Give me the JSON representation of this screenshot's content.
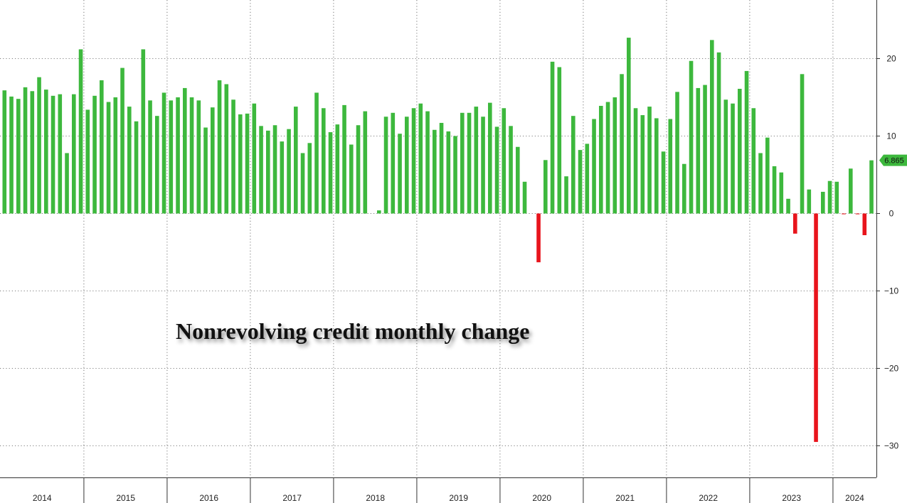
{
  "chart_data": {
    "type": "bar",
    "title": "Nonrevolving credit monthly change",
    "xlabel": "",
    "ylabel": "",
    "ylim": [
      -34,
      27.5
    ],
    "yticks": [
      20,
      10,
      0,
      -10,
      -20,
      -30
    ],
    "grid": true,
    "x_start": "2014-01",
    "year_labels": [
      "2014",
      "2015",
      "2016",
      "2017",
      "2018",
      "2019",
      "2020",
      "2021",
      "2022",
      "2023",
      "2024"
    ],
    "last_value_label": "6.865",
    "positive_color": "#3db83d",
    "negative_color": "#e8141c",
    "label_color": "#3db83d",
    "values": [
      15.9,
      15.1,
      14.8,
      16.3,
      15.8,
      17.6,
      16.0,
      15.2,
      15.4,
      7.8,
      15.4,
      21.2,
      13.4,
      15.2,
      17.2,
      14.4,
      15.0,
      18.8,
      13.8,
      11.9,
      21.2,
      14.6,
      12.6,
      15.6,
      14.6,
      15.0,
      16.2,
      15.0,
      14.6,
      11.1,
      13.7,
      17.2,
      16.7,
      14.7,
      12.8,
      12.9,
      14.2,
      11.3,
      10.7,
      11.4,
      9.3,
      10.9,
      13.8,
      7.8,
      9.1,
      15.6,
      13.6,
      10.5,
      11.5,
      14.0,
      8.9,
      11.4,
      13.2,
      0.0,
      0.4,
      12.5,
      13.0,
      10.3,
      12.5,
      13.6,
      14.2,
      13.2,
      10.8,
      11.7,
      10.6,
      10.0,
      13.0,
      13.0,
      13.8,
      12.5,
      14.3,
      11.2,
      13.6,
      11.3,
      8.6,
      4.1,
      0.0,
      -6.3,
      6.9,
      19.6,
      18.9,
      4.8,
      12.6,
      8.2,
      9.0,
      12.2,
      13.9,
      14.4,
      15.0,
      18.0,
      22.7,
      13.6,
      12.7,
      13.8,
      12.3,
      8.0,
      12.2,
      15.7,
      6.4,
      19.7,
      16.2,
      16.6,
      22.4,
      20.8,
      14.7,
      14.2,
      16.1,
      18.4,
      13.6,
      7.8,
      9.8,
      6.1,
      5.3,
      1.9,
      -2.6,
      18.0,
      3.1,
      -29.5,
      2.8,
      4.2,
      4.1,
      -0.1,
      5.8,
      -0.1,
      -2.8,
      6.865
    ]
  }
}
